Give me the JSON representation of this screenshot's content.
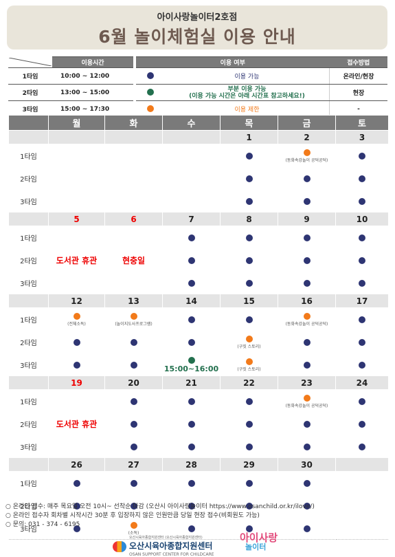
{
  "header": {
    "subtitle": "아이사랑놀이터2호점",
    "title": "6월 놀이체험실 이용 안내"
  },
  "time_table": {
    "header": "이용시간",
    "rows": [
      {
        "label": "1타임",
        "time": "10:00 ~ 12:00"
      },
      {
        "label": "2타임",
        "time": "13:00 ~ 15:00"
      },
      {
        "label": "3타임",
        "time": "15:00 ~ 17:30"
      }
    ]
  },
  "status_table": {
    "header_status": "이용 여부",
    "header_method": "접수방법",
    "rows": [
      {
        "color": "#2e3573",
        "text": "이용 가능",
        "method": "온라인/현장"
      },
      {
        "color": "#23704e",
        "text": "부분 이용 가능",
        "text2": "(이용 가능 시간은 아래 시간표 참고하세요!)",
        "method": "현장"
      },
      {
        "color": "#f27a1a",
        "text": "이용 제한",
        "method": "-"
      }
    ]
  },
  "calendar": {
    "weekdays": [
      "월",
      "화",
      "수",
      "목",
      "금",
      "토"
    ],
    "slots": [
      "1타임",
      "2타임",
      "3타임"
    ],
    "weeks": [
      {
        "dates": [
          "",
          "",
          "",
          "1",
          "2",
          "3"
        ],
        "cells": [
          [
            {
              "s": ""
            },
            {
              "s": ""
            },
            {
              "s": ""
            },
            {
              "s": "a"
            },
            {
              "s": "r",
              "n": "(동화속강놀이 공덕공덕)"
            },
            {
              "s": "a"
            }
          ],
          [
            {
              "s": ""
            },
            {
              "s": ""
            },
            {
              "s": ""
            },
            {
              "s": "a"
            },
            {
              "s": "a"
            },
            {
              "s": "a"
            }
          ],
          [
            {
              "s": ""
            },
            {
              "s": ""
            },
            {
              "s": ""
            },
            {
              "s": "a"
            },
            {
              "s": "a"
            },
            {
              "s": "a"
            }
          ]
        ]
      },
      {
        "dates": [
          "5",
          "6",
          "7",
          "8",
          "9",
          "10"
        ],
        "red": [
          true,
          true,
          false,
          false,
          false,
          false
        ],
        "notes": [
          "도서관 휴관",
          "현충일"
        ],
        "cells": [
          [
            {
              "s": ""
            },
            {
              "s": ""
            },
            {
              "s": "a"
            },
            {
              "s": "a"
            },
            {
              "s": "a"
            },
            {
              "s": "a"
            }
          ],
          [
            {
              "s": ""
            },
            {
              "s": ""
            },
            {
              "s": "a"
            },
            {
              "s": "a"
            },
            {
              "s": "a"
            },
            {
              "s": "a"
            }
          ],
          [
            {
              "s": ""
            },
            {
              "s": ""
            },
            {
              "s": "a"
            },
            {
              "s": "a"
            },
            {
              "s": "a"
            },
            {
              "s": "a"
            }
          ]
        ]
      },
      {
        "dates": [
          "12",
          "13",
          "14",
          "15",
          "16",
          "17"
        ],
        "cells": [
          [
            {
              "s": "r",
              "n": "(전체소독)"
            },
            {
              "s": "r",
              "n": "(놀이지도사프로그램)"
            },
            {
              "s": "a"
            },
            {
              "s": "a"
            },
            {
              "s": "r",
              "n": "(동화속강놀이 공덕공덕)"
            },
            {
              "s": "a"
            }
          ],
          [
            {
              "s": "a"
            },
            {
              "s": "a"
            },
            {
              "s": "a"
            },
            {
              "s": "r",
              "n": "(구짓 스토리)"
            },
            {
              "s": "a"
            },
            {
              "s": "a"
            }
          ],
          [
            {
              "s": "a"
            },
            {
              "s": "a"
            },
            {
              "s": "p",
              "label": "15:00~16:00"
            },
            {
              "s": "r",
              "n": "(구짓 스토리)"
            },
            {
              "s": "a"
            },
            {
              "s": "a"
            }
          ]
        ]
      },
      {
        "dates": [
          "19",
          "20",
          "21",
          "22",
          "23",
          "24"
        ],
        "red": [
          true,
          false,
          false,
          false,
          false,
          false
        ],
        "notes": [
          "도서관 휴관"
        ],
        "cells": [
          [
            {
              "s": ""
            },
            {
              "s": "a"
            },
            {
              "s": "a"
            },
            {
              "s": "a"
            },
            {
              "s": "r",
              "n": "(동화속강놀이 공덕공덕)"
            },
            {
              "s": "a"
            }
          ],
          [
            {
              "s": ""
            },
            {
              "s": "a"
            },
            {
              "s": "a"
            },
            {
              "s": "a"
            },
            {
              "s": "a"
            },
            {
              "s": "a"
            }
          ],
          [
            {
              "s": ""
            },
            {
              "s": "a"
            },
            {
              "s": "a"
            },
            {
              "s": "a"
            },
            {
              "s": "a"
            },
            {
              "s": "a"
            }
          ]
        ]
      },
      {
        "dates": [
          "26",
          "27",
          "28",
          "29",
          "30",
          ""
        ],
        "cells": [
          [
            {
              "s": "a"
            },
            {
              "s": "a"
            },
            {
              "s": "a"
            },
            {
              "s": "a"
            },
            {
              "s": "a"
            },
            {
              "s": ""
            }
          ],
          [
            {
              "s": "a"
            },
            {
              "s": "a"
            },
            {
              "s": "a"
            },
            {
              "s": "a"
            },
            {
              "s": "a"
            },
            {
              "s": ""
            }
          ],
          [
            {
              "s": "a"
            },
            {
              "s": "r",
              "n": "(소독)"
            },
            {
              "s": "a"
            },
            {
              "s": "a"
            },
            {
              "s": "a"
            },
            {
              "s": ""
            }
          ]
        ]
      }
    ]
  },
  "footer": {
    "lines": [
      "온라인 접수: 매주 목요일 오전 10시~ 선착순 마감 (오산시 아이사랑놀이터 https://www.osanchild.or.kr/ilove/)",
      "온라인 접수자 회차별 시작시간 30분 후 입장하지 않은 인원만큼 당일 현장 접수(비회원도 가능)",
      "문의: 031 - 374 - 6195"
    ]
  },
  "logos": {
    "center_small": "오산시육아종합지원센터 (오산시육아종합지원센터)",
    "center": "오산시육아종합지원센터",
    "center_sub": "OSAN SUPPORT CENTER FOR CHILDCARE",
    "ilove_1": "아이사랑",
    "ilove_2": "놀이터"
  },
  "colors": {
    "available": "#2e3573",
    "partial": "#23704e",
    "restricted": "#f27a1a",
    "holiday": "#ee0000"
  }
}
